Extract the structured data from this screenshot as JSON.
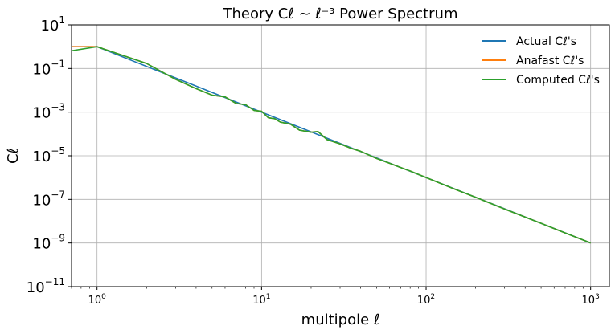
{
  "chart_data": {
    "type": "line",
    "title": "Theory Cℓ ~ ℓ⁻³ Power Spectrum",
    "xlabel": "multipole ℓ",
    "ylabel": "Cℓ",
    "xscale": "log",
    "yscale": "log",
    "xlim": [
      0.7,
      1300
    ],
    "ylim": [
      1e-11,
      10
    ],
    "grid": true,
    "legend_position": "top-right",
    "x_ticks": [
      {
        "value": 1,
        "base": "10",
        "exp": "0"
      },
      {
        "value": 10,
        "base": "10",
        "exp": "1"
      },
      {
        "value": 100,
        "base": "10",
        "exp": "2"
      },
      {
        "value": 1000,
        "base": "10",
        "exp": "3"
      }
    ],
    "y_ticks": [
      {
        "value": 1e-11,
        "base": "10",
        "exp": "−11"
      },
      {
        "value": 1e-09,
        "base": "10",
        "exp": "−9"
      },
      {
        "value": 1e-07,
        "base": "10",
        "exp": "−7"
      },
      {
        "value": 1e-05,
        "base": "10",
        "exp": "−5"
      },
      {
        "value": 0.001,
        "base": "10",
        "exp": "−3"
      },
      {
        "value": 0.1,
        "base": "10",
        "exp": "−1"
      },
      {
        "value": 10,
        "base": "10",
        "exp": "1"
      }
    ],
    "series": [
      {
        "name": "Actual Cℓ's",
        "color": "#1f77b4",
        "x": [
          0.7,
          1,
          1000
        ],
        "y": [
          1.0,
          1.0,
          1e-09
        ]
      },
      {
        "name": "Anafast Cℓ's",
        "color": "#ff7f0e",
        "x": [
          0.7,
          1,
          2,
          3,
          4,
          5,
          6,
          7,
          8,
          9,
          10,
          11,
          12,
          13,
          15,
          17,
          20,
          22,
          25,
          30,
          35,
          40,
          50,
          60,
          70,
          80,
          100,
          150,
          200,
          300,
          500,
          700,
          1000
        ],
        "y": [
          1.0,
          1.0,
          0.17,
          0.032,
          0.012,
          0.006,
          0.005,
          0.0025,
          0.0022,
          0.0012,
          0.0011,
          0.00055,
          0.0005,
          0.00035,
          0.00028,
          0.00015,
          0.00012,
          0.00013,
          5.5e-05,
          3.5e-05,
          2.2e-05,
          1.6e-05,
          7.5e-06,
          4.5e-06,
          2.9e-06,
          2e-06,
          1e-06,
          2.9e-07,
          1.25e-07,
          3.6e-08,
          8e-09,
          2.9e-09,
          1e-09
        ]
      },
      {
        "name": "Computed Cℓ's",
        "color": "#2ca02c",
        "x": [
          0.7,
          1,
          2,
          3,
          4,
          5,
          6,
          7,
          8,
          9,
          10,
          11,
          12,
          13,
          15,
          17,
          20,
          22,
          25,
          30,
          35,
          40,
          50,
          60,
          70,
          80,
          100,
          150,
          200,
          300,
          500,
          700,
          1000
        ],
        "y": [
          0.65,
          1.0,
          0.17,
          0.032,
          0.012,
          0.006,
          0.005,
          0.0025,
          0.0022,
          0.0012,
          0.0011,
          0.00055,
          0.0005,
          0.00035,
          0.00028,
          0.00015,
          0.00012,
          0.00013,
          5.5e-05,
          3.5e-05,
          2.2e-05,
          1.6e-05,
          7.5e-06,
          4.5e-06,
          2.9e-06,
          2e-06,
          1e-06,
          2.9e-07,
          1.25e-07,
          3.6e-08,
          8e-09,
          2.9e-09,
          1e-09
        ]
      }
    ]
  }
}
